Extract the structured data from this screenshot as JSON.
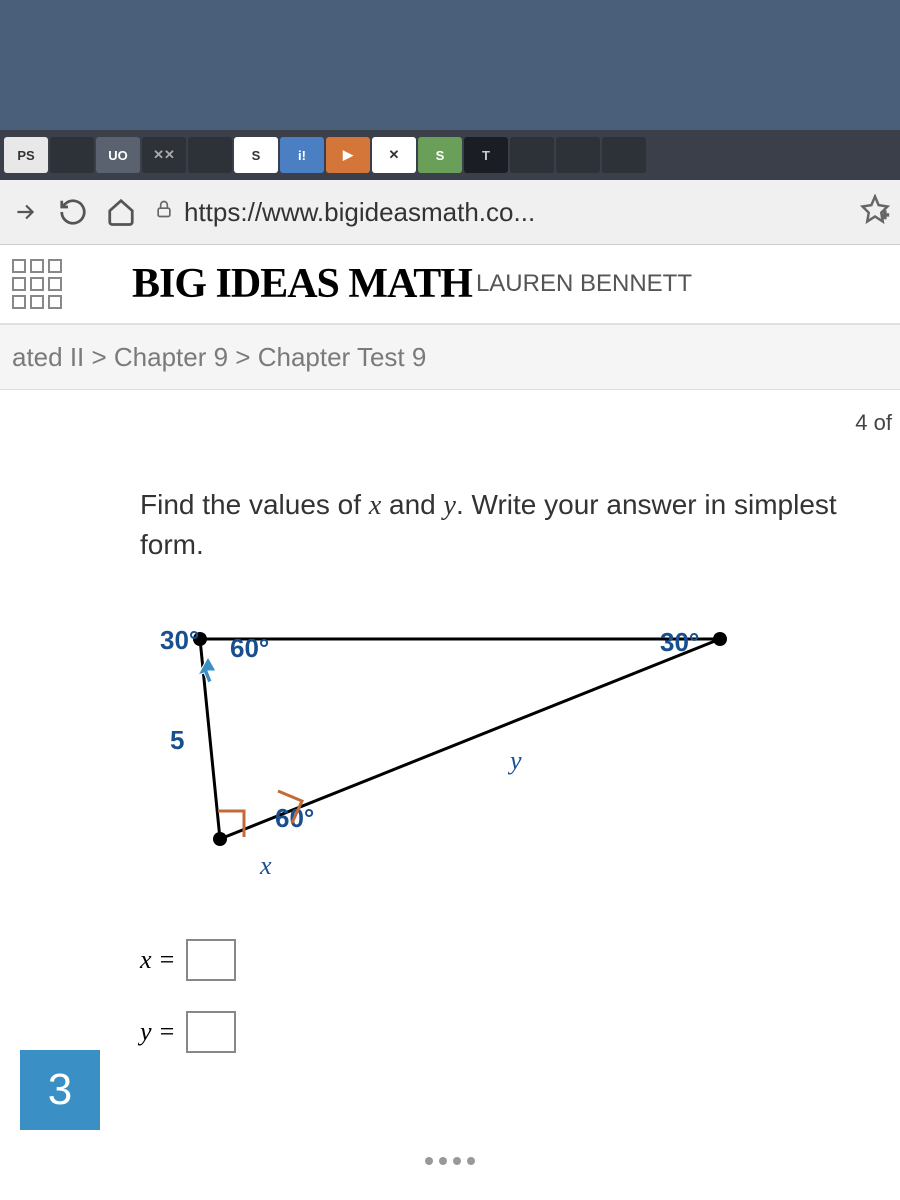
{
  "tabs": {
    "items": [
      {
        "label": "PS",
        "cls": "light"
      },
      {
        "label": "",
        "cls": ""
      },
      {
        "label": "UO",
        "cls": "active"
      },
      {
        "label": "✕✕",
        "cls": ""
      },
      {
        "label": "",
        "cls": ""
      },
      {
        "label": "S",
        "cls": "white"
      },
      {
        "label": "i!",
        "cls": "blue"
      },
      {
        "label": "▶",
        "cls": "orange"
      },
      {
        "label": "✕",
        "cls": "white"
      },
      {
        "label": "S",
        "cls": "green"
      },
      {
        "label": "T",
        "cls": "dark"
      },
      {
        "label": "",
        "cls": ""
      },
      {
        "label": "",
        "cls": ""
      },
      {
        "label": "",
        "cls": ""
      }
    ]
  },
  "url": "https://www.bigideasmath.co...",
  "logo_main": "BIG IDEAS ",
  "logo_sub": "MATH",
  "user": "LAUREN BENNETT",
  "breadcrumb": "ated II > Chapter 9 > Chapter Test 9",
  "progress": "4 of",
  "question": {
    "prefix": "Find the values of ",
    "var1": "x",
    "mid": " and ",
    "var2": "y",
    "suffix": ". Write your answer in simplest form."
  },
  "diagram": {
    "angle_tl_left": "30°",
    "angle_tl_right": "60°",
    "angle_tr": "30°",
    "angle_bottom": "60°",
    "side_left": "5",
    "side_right": "y",
    "side_bottom": "x",
    "colors": {
      "line": "#000000",
      "point": "#000000",
      "angle_text": "#1a4f8f",
      "angle_text_bold": "#1a4f8f",
      "side_text": "#1a4f8f",
      "right_angle": "#c46a3a",
      "cursor": "#3a8fc4"
    }
  },
  "answers": {
    "x_label": "x =",
    "y_label": "y ="
  },
  "question_number": "3"
}
